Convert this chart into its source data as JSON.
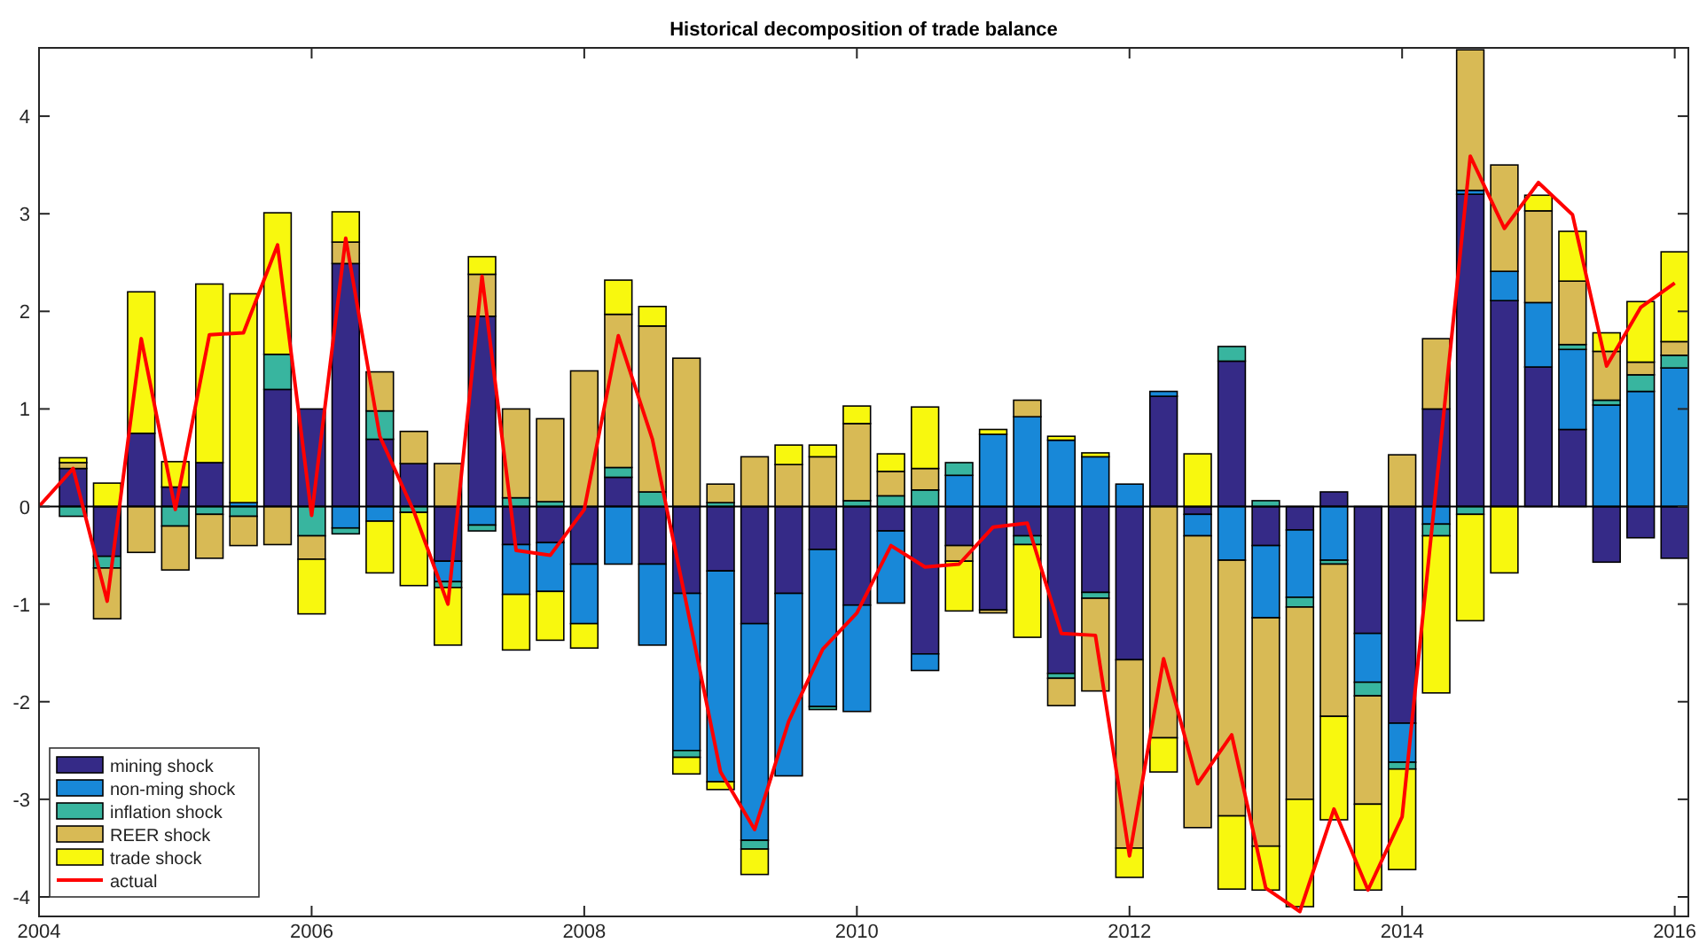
{
  "chart_data": {
    "type": "bar",
    "stacked": true,
    "title": "Historical decomposition of trade balance",
    "x": [
      2004.25,
      2004.5,
      2004.75,
      2005,
      2005.25,
      2005.5,
      2005.75,
      2006,
      2006.25,
      2006.5,
      2006.75,
      2007,
      2007.25,
      2007.5,
      2007.75,
      2008,
      2008.25,
      2008.5,
      2008.75,
      2009,
      2009.25,
      2009.5,
      2009.75,
      2010,
      2010.25,
      2010.5,
      2010.75,
      2011,
      2011.25,
      2011.5,
      2011.75,
      2012,
      2012.25,
      2012.5,
      2012.75,
      2013,
      2013.25,
      2013.5,
      2013.75,
      2014,
      2014.25,
      2014.5,
      2014.75,
      2015,
      2015.25,
      2015.5,
      2015.75,
      2016
    ],
    "xlim": [
      2004,
      2016.1
    ],
    "xticks": [
      2004,
      2006,
      2008,
      2010,
      2012,
      2014,
      2016
    ],
    "ylim": [
      -4.2,
      4.7
    ],
    "yticks": [
      -4,
      -3,
      -2,
      -1,
      0,
      1,
      2,
      3,
      4
    ],
    "ref_lines": [
      {
        "axis": "y",
        "value": 0,
        "color": "#000000"
      }
    ],
    "legend": "bottom left",
    "series": [
      {
        "name": "mining shock",
        "color": "#352a87",
        "values": [
          0.39,
          -0.51,
          0.75,
          0.2,
          0.45,
          null,
          1.2,
          1.0,
          2.49,
          0.69,
          0.44,
          -0.56,
          1.95,
          -0.39,
          -0.37,
          -0.59,
          0.3,
          -0.59,
          -0.89,
          -0.66,
          -1.2,
          -0.89,
          -0.44,
          -1.01,
          -0.25,
          -1.51,
          -0.4,
          -1.06,
          -0.3,
          -1.71,
          -0.88,
          -1.57,
          1.13,
          -0.08,
          1.49,
          -0.4,
          -0.24,
          0.15,
          -1.3,
          -2.22,
          1.0,
          3.2,
          2.11,
          1.43,
          0.79,
          -0.57,
          -0.32,
          -0.53
        ]
      },
      {
        "name": "non-ming shock",
        "color": "#1888d8",
        "values": [
          0,
          0,
          0,
          0,
          0,
          0.04,
          0,
          0,
          -0.22,
          -0.15,
          null,
          -0.21,
          -0.19,
          -0.51,
          -0.5,
          -0.61,
          -0.59,
          -0.83,
          -1.61,
          -2.16,
          -2.22,
          -1.87,
          -1.61,
          -1.09,
          -0.74,
          -0.17,
          0.32,
          0.74,
          0.92,
          0.68,
          0.51,
          0.23,
          0.05,
          -0.22,
          -0.55,
          -0.74,
          -0.69,
          -0.55,
          -0.5,
          -0.4,
          -0.18,
          0.04,
          0.3,
          0.66,
          0.82,
          1.04,
          1.18,
          1.42
        ]
      },
      {
        "name": "inflation shock",
        "color": "#38b59f",
        "values": [
          -0.1,
          -0.12,
          0,
          -0.2,
          -0.08,
          -0.1,
          0.36,
          -0.3,
          -0.06,
          0.29,
          -0.06,
          -0.06,
          -0.06,
          0.09,
          0.05,
          null,
          0.1,
          0.15,
          -0.07,
          0.04,
          -0.09,
          0,
          -0.03,
          0.06,
          0.11,
          0.17,
          0.13,
          0,
          -0.09,
          -0.05,
          -0.06,
          0,
          0,
          0,
          0.15,
          0.06,
          -0.1,
          -0.04,
          -0.14,
          -0.07,
          -0.12,
          -0.08,
          null,
          0,
          0.05,
          0.05,
          0.17,
          0.13
        ]
      },
      {
        "name": "REER shock",
        "color": "#d8ba55",
        "values": [
          0.06,
          -0.52,
          -0.47,
          -0.45,
          -0.45,
          -0.3,
          -0.39,
          -0.24,
          0.22,
          0.4,
          0.33,
          0.44,
          0.43,
          0.91,
          0.85,
          1.39,
          1.57,
          1.7,
          1.52,
          0.19,
          0.51,
          0.43,
          0.51,
          0.79,
          0.25,
          0.22,
          -0.16,
          -0.03,
          0.17,
          -0.28,
          -0.95,
          -1.93,
          -2.37,
          -2.99,
          -2.62,
          -2.34,
          -1.97,
          -1.56,
          -1.11,
          0.53,
          0.72,
          1.44,
          1.09,
          0.94,
          0.65,
          0.5,
          0.13,
          0.14
        ]
      },
      {
        "name": "trade shock",
        "color": "#f8f80e",
        "values": [
          0.05,
          0.24,
          1.45,
          0.26,
          1.83,
          2.14,
          1.45,
          -0.56,
          0.31,
          -0.53,
          -0.75,
          -0.59,
          0.18,
          -0.57,
          -0.5,
          -0.25,
          0.35,
          0.2,
          -0.17,
          -0.08,
          -0.26,
          0.2,
          0.12,
          0.18,
          0.18,
          0.63,
          -0.51,
          0.05,
          -0.95,
          0.04,
          0.04,
          -0.3,
          -0.35,
          0.54,
          -0.75,
          -0.45,
          -1.1,
          -1.06,
          -0.88,
          -1.03,
          -1.61,
          -1.09,
          -0.68,
          0.16,
          0.51,
          0.19,
          0.62,
          0.92
        ]
      },
      {
        "name": "actual",
        "type": "line",
        "color": "#ff0000",
        "line_style": "solid",
        "marker": "none",
        "x": [
          2004,
          2004.25,
          2004.5,
          2004.75,
          2005,
          2005.25,
          2005.5,
          2005.75,
          2006,
          2006.25,
          2006.5,
          2006.75,
          2007,
          2007.25,
          2007.5,
          2007.75,
          2008,
          2008.25,
          2008.5,
          2008.75,
          2009,
          2009.25,
          2009.5,
          2009.75,
          2010,
          2010.25,
          2010.5,
          2010.75,
          2011,
          2011.25,
          2011.5,
          2011.75,
          2012,
          2012.25,
          2012.5,
          2012.75,
          2013,
          2013.25,
          2013.5,
          2013.75,
          2014,
          2014.25,
          2014.5,
          2014.75,
          2015,
          2015.25,
          2015.5,
          2015.75,
          2016
        ],
        "values": [
          0,
          0.39,
          -0.97,
          1.72,
          -0.03,
          1.76,
          1.78,
          2.68,
          -0.09,
          2.75,
          0.72,
          -0.05,
          -1.0,
          2.36,
          -0.45,
          -0.5,
          -0.03,
          1.75,
          0.69,
          -1.0,
          -2.72,
          -3.31,
          -2.2,
          -1.46,
          -1.09,
          -0.4,
          -0.62,
          -0.59,
          -0.21,
          -0.17,
          -1.3,
          -1.32,
          -3.58,
          -1.56,
          -2.84,
          -2.34,
          -3.91,
          -4.15,
          -3.1,
          -3.93,
          -3.18,
          0.2,
          3.59,
          2.85,
          3.32,
          2.99,
          1.44,
          2.04,
          2.29
        ]
      }
    ]
  }
}
